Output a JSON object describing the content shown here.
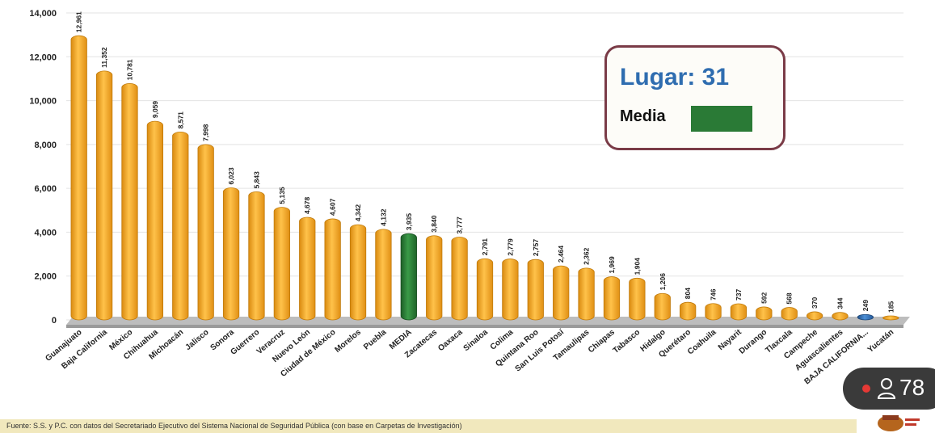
{
  "chart_data": {
    "type": "bar",
    "categories": [
      "Guanajuato",
      "Baja California",
      "México",
      "Chihuahua",
      "Michoacán",
      "Jalisco",
      "Sonora",
      "Guerrero",
      "Veracruz",
      "Nuevo León",
      "Ciudad de México",
      "Morelos",
      "Puebla",
      "MEDIA",
      "Zacatecas",
      "Oaxaca",
      "Sinaloa",
      "Colima",
      "Quintana Roo",
      "San Luis Potosí",
      "Tamaulipas",
      "Chiapas",
      "Tabasco",
      "Hidalgo",
      "Querétaro",
      "Coahuila",
      "Nayarit",
      "Durango",
      "Tlaxcala",
      "Campeche",
      "Aguascalientes",
      "BAJA CALIFORNIA...",
      "Yucatán"
    ],
    "values": [
      12961,
      11352,
      10781,
      9059,
      8571,
      7998,
      6023,
      5843,
      5135,
      4678,
      4607,
      4342,
      4132,
      3935,
      3840,
      3777,
      2791,
      2779,
      2757,
      2464,
      2362,
      1969,
      1904,
      1206,
      804,
      746,
      737,
      592,
      568,
      370,
      344,
      249,
      185
    ],
    "value_labels": [
      "12,961",
      "11,352",
      "10,781",
      "9,059",
      "8,571",
      "7,998",
      "6,023",
      "5,843",
      "5,135",
      "4,678",
      "4,607",
      "4,342",
      "4,132",
      "3,935",
      "3,840",
      "3,777",
      "2,791",
      "2,779",
      "2,757",
      "2,464",
      "2,362",
      "1,969",
      "1,904",
      "1,206",
      "804",
      "746",
      "737",
      "592",
      "568",
      "370",
      "344",
      "249",
      "185"
    ],
    "ylim": [
      0,
      14000
    ],
    "yticks": [
      0,
      2000,
      4000,
      6000,
      8000,
      10000,
      12000,
      14000
    ],
    "ytick_labels": [
      "0",
      "2,000",
      "4,000",
      "6,000",
      "8,000",
      "10,000",
      "12,000",
      "14,000"
    ],
    "grid": true,
    "colors": {
      "default": "#f5a623",
      "media": "#2a7a36",
      "highlight": "#2f6db0"
    },
    "highlight_categories": {
      "MEDIA": "media",
      "BAJA CALIFORNIA...": "highlight"
    }
  },
  "legend": {
    "title": "Lugar: 31",
    "label": "Media",
    "swatch_color": "#2a7a36"
  },
  "footer": {
    "source": "Fuente: S.S. y P.C. con datos del Secretariado Ejecutivo del Sistema Nacional de Seguridad Pública (con base en Carpetas de Investigación)"
  },
  "overlay": {
    "viewer_count": "78",
    "icon": "user-icon",
    "live_indicator": "red-dot"
  }
}
